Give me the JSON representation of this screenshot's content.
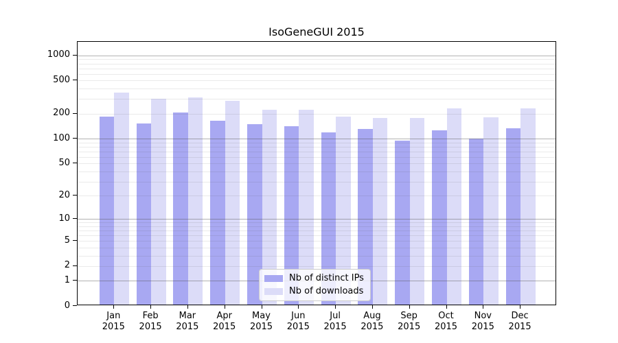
{
  "chart_data": {
    "type": "bar",
    "title": "IsoGeneGUI 2015",
    "xlabel": "",
    "ylabel": "",
    "year_label": "2015",
    "categories": [
      "Jan",
      "Feb",
      "Mar",
      "Apr",
      "May",
      "Jun",
      "Jul",
      "Aug",
      "Sep",
      "Oct",
      "Nov",
      "Dec"
    ],
    "series": [
      {
        "name": "Nb of distinct IPs",
        "color": "#a8a8f2",
        "values": [
          177,
          148,
          198,
          158,
          145,
          137,
          114,
          126,
          91,
          121,
          97,
          128
        ]
      },
      {
        "name": "Nb of downloads",
        "color": "#dcdcf8",
        "values": [
          346,
          291,
          303,
          273,
          216,
          215,
          176,
          170,
          172,
          223,
          175,
          222
        ]
      }
    ],
    "y_axis": {
      "scale": "log1p",
      "ticks": [
        0,
        1,
        2,
        5,
        10,
        20,
        50,
        100,
        200,
        500,
        1000
      ],
      "range": [
        0,
        1470
      ]
    },
    "grid": {
      "on": true,
      "major_lines": [
        1,
        10,
        100,
        1000
      ],
      "minor_lines": [
        2,
        3,
        4,
        5,
        6,
        7,
        8,
        9,
        20,
        30,
        40,
        50,
        60,
        70,
        80,
        90,
        200,
        300,
        400,
        500,
        600,
        700,
        800,
        900
      ]
    },
    "legend": {
      "position": "inside-bottom-center",
      "entries": [
        "Nb of distinct IPs",
        "Nb of downloads"
      ]
    }
  },
  "colors": {
    "axis": "#000000",
    "grid_major": "#b2b2b2",
    "grid_minor": "#eaeaea",
    "legend_border": "#cccccc"
  }
}
